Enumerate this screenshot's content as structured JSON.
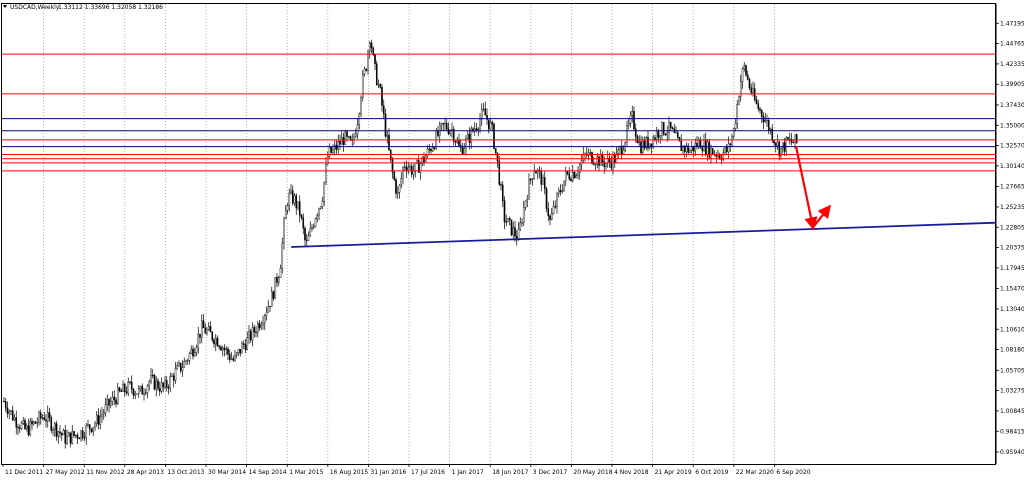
{
  "header": {
    "symbol": "USDCAD,Weekly",
    "ohlc": "1.33112 1.33696 1.32058 1.32186"
  },
  "colors": {
    "background": "#ffffff",
    "candle": "#000000",
    "grid": "#a0a0a0",
    "support_line": "#1a1a9e",
    "resistance_red": "#ff0000",
    "level_blue": "#000080",
    "arrow": "#ff0000"
  },
  "chart_data": {
    "type": "candlestick",
    "title": "USDCAD,Weekly",
    "ylim": [
      0.945,
      1.495
    ],
    "grid": "vertical-dotted",
    "x_tick_labels": [
      "11 Dec 2011",
      "27 May 2012",
      "11 Nov 2012",
      "28 Apr 2013",
      "13 Oct 2013",
      "30 Mar 2014",
      "14 Sep 2014",
      "1 Mar 2015",
      "16 Aug 2015",
      "31 Jan 2016",
      "17 Jul 2016",
      "1 Jan 2017",
      "18 Jun 2017",
      "3 Dec 2017",
      "20 May 2018",
      "4 Nov 2018",
      "21 Apr 2019",
      "6 Oct 2019",
      "22 Mar 2020",
      "6 Sep 2020"
    ],
    "y_ticks": [
      "1.47195",
      "1.44765",
      "1.42335",
      "1.39905",
      "1.37430",
      "1.35000",
      "1.32570",
      "1.30140",
      "1.27665",
      "1.25235",
      "1.22805",
      "1.20375",
      "1.17945",
      "1.15470",
      "1.13040",
      "1.10610",
      "1.08180",
      "1.05705",
      "1.03275",
      "1.00845",
      "0.98415",
      "0.95940"
    ],
    "price_path": [
      [
        0,
        1.02
      ],
      [
        10,
        1.0
      ],
      [
        22,
        0.985
      ],
      [
        32,
        0.995
      ],
      [
        40,
        1.003
      ],
      [
        50,
        0.99
      ],
      [
        62,
        0.975
      ],
      [
        78,
        0.983
      ],
      [
        92,
        0.995
      ],
      [
        104,
        1.015
      ],
      [
        116,
        1.03
      ],
      [
        126,
        1.037
      ],
      [
        136,
        1.03
      ],
      [
        146,
        1.045
      ],
      [
        160,
        1.035
      ],
      [
        172,
        1.055
      ],
      [
        180,
        1.065
      ],
      [
        190,
        1.085
      ],
      [
        198,
        1.108
      ],
      [
        206,
        1.1
      ],
      [
        214,
        1.093
      ],
      [
        222,
        1.08
      ],
      [
        230,
        1.068
      ],
      [
        238,
        1.085
      ],
      [
        248,
        1.1
      ],
      [
        258,
        1.12
      ],
      [
        268,
        1.145
      ],
      [
        276,
        1.18
      ],
      [
        280,
        1.23
      ],
      [
        284,
        1.265
      ],
      [
        290,
        1.262
      ],
      [
        296,
        1.245
      ],
      [
        302,
        1.205
      ],
      [
        306,
        1.22
      ],
      [
        312,
        1.245
      ],
      [
        318,
        1.262
      ],
      [
        324,
        1.315
      ],
      [
        330,
        1.32
      ],
      [
        340,
        1.335
      ],
      [
        348,
        1.325
      ],
      [
        354,
        1.36
      ],
      [
        358,
        1.4
      ],
      [
        362,
        1.42
      ],
      [
        366,
        1.46
      ],
      [
        370,
        1.42
      ],
      [
        376,
        1.39
      ],
      [
        382,
        1.34
      ],
      [
        388,
        1.295
      ],
      [
        394,
        1.265
      ],
      [
        400,
        1.305
      ],
      [
        410,
        1.295
      ],
      [
        420,
        1.31
      ],
      [
        430,
        1.33
      ],
      [
        440,
        1.35
      ],
      [
        448,
        1.345
      ],
      [
        456,
        1.32
      ],
      [
        464,
        1.333
      ],
      [
        472,
        1.35
      ],
      [
        480,
        1.365
      ],
      [
        488,
        1.345
      ],
      [
        494,
        1.3
      ],
      [
        500,
        1.24
      ],
      [
        508,
        1.225
      ],
      [
        514,
        1.215
      ],
      [
        522,
        1.265
      ],
      [
        530,
        1.3
      ],
      [
        538,
        1.285
      ],
      [
        546,
        1.235
      ],
      [
        554,
        1.265
      ],
      [
        562,
        1.29
      ],
      [
        572,
        1.295
      ],
      [
        582,
        1.315
      ],
      [
        592,
        1.31
      ],
      [
        602,
        1.305
      ],
      [
        612,
        1.31
      ],
      [
        620,
        1.33
      ],
      [
        628,
        1.36
      ],
      [
        636,
        1.325
      ],
      [
        646,
        1.33
      ],
      [
        656,
        1.345
      ],
      [
        666,
        1.345
      ],
      [
        676,
        1.325
      ],
      [
        686,
        1.32
      ],
      [
        696,
        1.33
      ],
      [
        706,
        1.32
      ],
      [
        716,
        1.315
      ],
      [
        724,
        1.32
      ],
      [
        730,
        1.345
      ],
      [
        736,
        1.4
      ],
      [
        740,
        1.42
      ],
      [
        746,
        1.395
      ],
      [
        752,
        1.375
      ],
      [
        760,
        1.36
      ],
      [
        768,
        1.34
      ],
      [
        776,
        1.32
      ],
      [
        784,
        1.33
      ],
      [
        792,
        1.33
      ],
      [
        797,
        1.322
      ]
    ],
    "levels": [
      {
        "price": "1.43500",
        "color": "red"
      },
      {
        "price": "1.38750",
        "color": "red"
      },
      {
        "price": "1.35800",
        "color": "blue"
      },
      {
        "price": "1.34350",
        "color": "blue"
      },
      {
        "price": "1.33250",
        "color": "red"
      },
      {
        "price": "1.32450",
        "color": "blue"
      },
      {
        "price": "1.31500",
        "color": "red"
      },
      {
        "price": "1.31000",
        "color": "red"
      },
      {
        "price": "1.30500",
        "color": "red"
      },
      {
        "price": "1.29550",
        "color": "red"
      }
    ],
    "support_trendline": {
      "from": {
        "x": "1 Mar 2015",
        "price": 1.2045
      },
      "to_price_at_axis": 1.2335
    },
    "projection_arrows": [
      {
        "from_price": 1.325,
        "to_price": 1.228
      },
      {
        "from_price": 1.228,
        "to_price": 1.252
      }
    ]
  }
}
